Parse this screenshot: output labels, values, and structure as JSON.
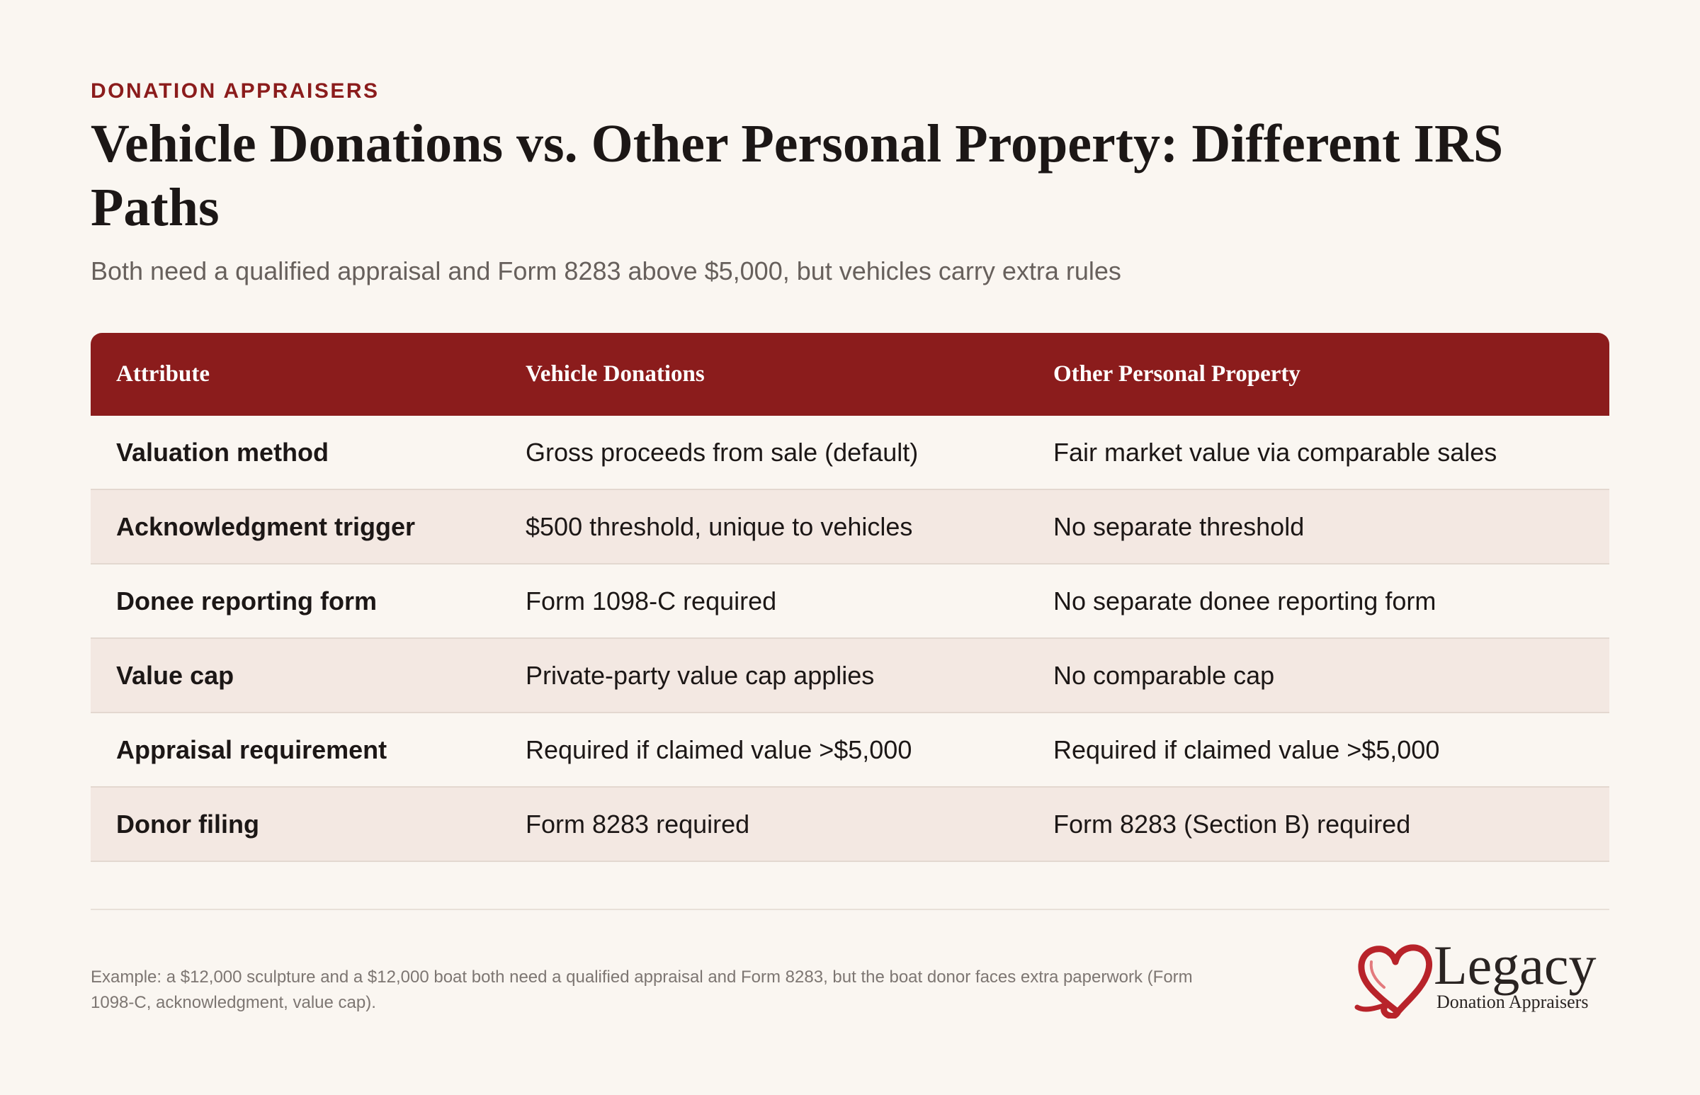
{
  "header": {
    "eyebrow": "DONATION APPRAISERS",
    "title": "Vehicle Donations vs. Other Personal Property: Different IRS Paths",
    "subtitle": "Both need a qualified appraisal and Form 8283 above $5,000, but vehicles carry extra rules"
  },
  "table": {
    "headers": [
      "Attribute",
      "Vehicle Donations",
      "Other Personal Property"
    ],
    "rows": [
      [
        "Valuation method",
        "Gross proceeds from sale (default)",
        "Fair market value via comparable sales"
      ],
      [
        "Acknowledgment trigger",
        "$500 threshold, unique to vehicles",
        "No separate threshold"
      ],
      [
        "Donee reporting form",
        "Form 1098-C required",
        "No separate donee reporting form"
      ],
      [
        "Value cap",
        "Private-party value cap applies",
        "No comparable cap"
      ],
      [
        "Appraisal requirement",
        "Required if claimed value >$5,000",
        "Required if claimed value >$5,000"
      ],
      [
        "Donor filing",
        "Form 8283 required",
        "Form 8283 (Section B) required"
      ]
    ]
  },
  "footnote": "Example: a $12,000 sculpture and a $12,000 boat both need a qualified appraisal and Form 8283, but the boat donor faces extra paperwork (Form 1098-C, acknowledgment, value cap).",
  "logo": {
    "word": "Legacy",
    "sub": "Donation Appraisers",
    "icon": "heart-ribbon-icon",
    "color": "#b8232a"
  },
  "colors": {
    "accent": "#8b1c1c",
    "background": "#faf6f1",
    "alt_row": "#f3e8e2"
  }
}
